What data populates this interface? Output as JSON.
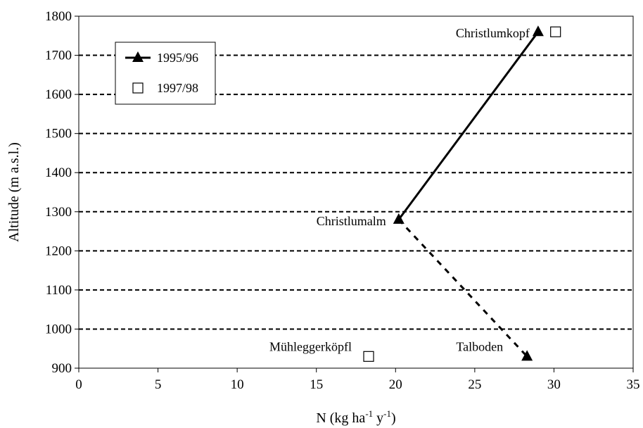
{
  "chart_data": {
    "type": "line",
    "title": "",
    "xlabel": "N (kg ha",
    "xlabel_sup1": "-1",
    "xlabel_mid": " y",
    "xlabel_sup2": "-1",
    "xlabel_end": ")",
    "ylabel": "Altitude (m a.s.l.)",
    "xlim": [
      0,
      35
    ],
    "ylim": [
      900,
      1800
    ],
    "xticks": [
      0,
      5,
      10,
      15,
      20,
      25,
      30,
      35
    ],
    "yticks": [
      900,
      1000,
      1100,
      1200,
      1300,
      1400,
      1500,
      1600,
      1700,
      1800
    ],
    "ygrid": "dashed",
    "legend_position": "top-left",
    "series": [
      {
        "name": "1995/96",
        "marker": "filled-triangle",
        "points": [
          {
            "x": 29.0,
            "y": 1760
          },
          {
            "x": 20.2,
            "y": 1280
          },
          {
            "x": 28.3,
            "y": 930
          }
        ],
        "segments": [
          {
            "from": 0,
            "to": 1,
            "style": "solid"
          },
          {
            "from": 1,
            "to": 2,
            "style": "dashed"
          }
        ]
      },
      {
        "name": "1997/98",
        "marker": "open-square",
        "points": [
          {
            "x": 30.1,
            "y": 1760
          },
          {
            "x": 18.3,
            "y": 930
          }
        ]
      }
    ],
    "annotations": [
      {
        "text": "Christlumkopf",
        "x": 29.0,
        "y": 1760,
        "anchor": "left-of"
      },
      {
        "text": "Christlumalm",
        "x": 20.2,
        "y": 1280,
        "anchor": "left-of"
      },
      {
        "text": "Mühleggerköpfl",
        "x": 18.3,
        "y": 930,
        "anchor": "left-of"
      },
      {
        "text": "Talboden",
        "x": 28.3,
        "y": 930,
        "anchor": "left-of"
      }
    ]
  }
}
